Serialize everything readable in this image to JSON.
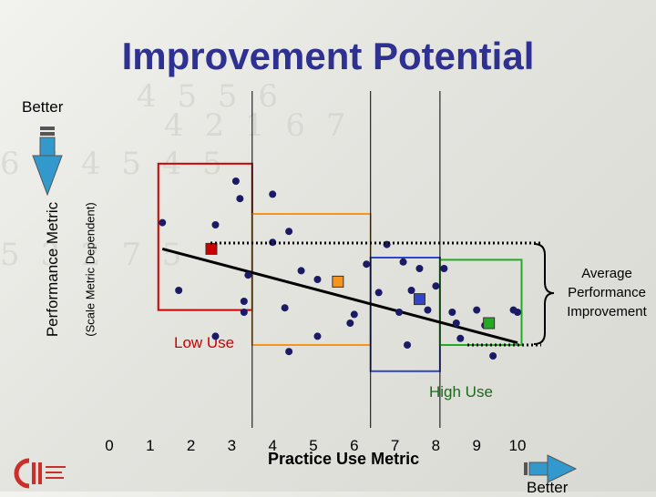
{
  "title": "Improvement Potential",
  "better_left": "Better",
  "better_bottom": "Better",
  "ylabel": "Performance Metric",
  "ylabel_sub": "(Scale Metric Dependent)",
  "annotation_avg": "Average Performance Improvement",
  "low_use_label": "Low Use",
  "high_use_label": "High Use",
  "colors": {
    "title": "#2e3192",
    "low_use": "#cc0000",
    "mid_low": "#f7941d",
    "mid_high": "#3344cc",
    "high_use": "#22aa22",
    "points": "#1a1a66",
    "arrow": "#3399cc"
  },
  "chart_data": {
    "type": "scatter",
    "xlabel": "Practice Use Metric",
    "ylabel": "Performance Metric",
    "x_ticks": [
      "0",
      "1",
      "2",
      "3",
      "4",
      "5",
      "6",
      "7",
      "8",
      "9",
      "10"
    ],
    "xlim": [
      0,
      10
    ],
    "ylim": [
      0,
      10
    ],
    "y_direction": "down-is-better",
    "series": [
      {
        "points": [
          [
            1.3,
            7.1
          ],
          [
            1.7,
            4.0
          ],
          [
            2.6,
            7.0
          ],
          [
            3.1,
            9.0
          ],
          [
            3.2,
            8.2
          ],
          [
            3.3,
            3.0
          ],
          [
            3.3,
            3.5
          ],
          [
            3.4,
            4.7
          ],
          [
            4.0,
            6.2
          ],
          [
            4.3,
            3.2
          ],
          [
            4.0,
            8.4
          ],
          [
            4.4,
            6.7
          ],
          [
            4.7,
            4.9
          ],
          [
            5.1,
            4.5
          ],
          [
            6.0,
            2.9
          ],
          [
            5.9,
            2.5
          ],
          [
            6.3,
            5.2
          ],
          [
            6.6,
            3.9
          ],
          [
            6.8,
            6.1
          ],
          [
            7.2,
            5.3
          ],
          [
            7.1,
            3.0
          ],
          [
            7.4,
            4.0
          ],
          [
            7.6,
            5.0
          ],
          [
            7.8,
            3.1
          ],
          [
            8.0,
            4.2
          ],
          [
            8.4,
            3.0
          ],
          [
            8.5,
            2.5
          ],
          [
            8.6,
            1.8
          ],
          [
            9.0,
            3.1
          ],
          [
            9.2,
            2.4
          ],
          [
            9.9,
            3.1
          ],
          [
            10.0,
            3.0
          ],
          [
            7.3,
            1.5
          ],
          [
            8.2,
            5.0
          ],
          [
            9.4,
            1.0
          ],
          [
            5.1,
            1.9
          ],
          [
            4.4,
            1.2
          ],
          [
            2.6,
            1.9
          ]
        ]
      }
    ],
    "trend_line": {
      "from": [
        1.3,
        5.9
      ],
      "to": [
        10.0,
        1.6
      ]
    },
    "group_means": [
      {
        "name": "Low Use",
        "x": 2.5,
        "y": 5.9
      },
      {
        "x": 5.6,
        "y": 4.4
      },
      {
        "x": 7.6,
        "y": 3.6
      },
      {
        "name": "High Use",
        "x": 9.3,
        "y": 2.5
      }
    ],
    "group_boxes": [
      {
        "name": "Low Use",
        "x": [
          1.2,
          3.5
        ],
        "y": [
          3.1,
          9.8
        ]
      },
      {
        "x": [
          3.5,
          6.4
        ],
        "y": [
          1.5,
          7.5
        ]
      },
      {
        "x": [
          6.4,
          8.1
        ],
        "y": [
          0.3,
          5.5
        ]
      },
      {
        "name": "High Use",
        "x": [
          8.1,
          10.1
        ],
        "y": [
          1.5,
          5.4
        ]
      }
    ],
    "grid": false
  }
}
